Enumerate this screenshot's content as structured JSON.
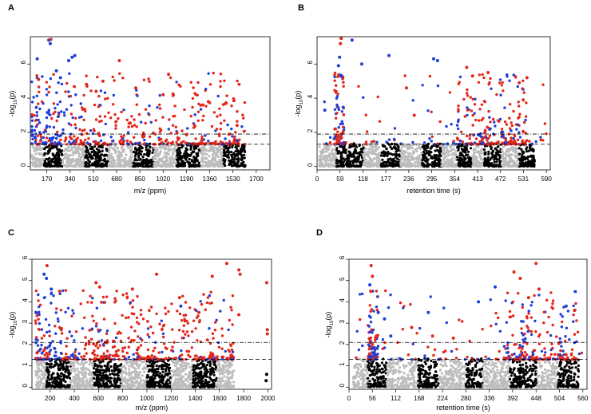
{
  "figure": {
    "colors": {
      "gray": "#bdbdbd",
      "black": "#000000",
      "blue": "#1f3fd6",
      "red": "#e3261a"
    }
  },
  "chart_data": [
    {
      "type": "scatter",
      "subtype": "manhattan",
      "panel_label": "A",
      "xlabel": "m/z (ppm)",
      "ylabel": "-log10(p)",
      "ylabel_main": "-log",
      "ylabel_sub": "10",
      "ylabel_tail": "(p)",
      "xlim": [
        50,
        1800
      ],
      "ylim": [
        -0.2,
        7.6
      ],
      "xticks": [
        170,
        340,
        510,
        680,
        850,
        1020,
        1190,
        1360,
        1530,
        1700
      ],
      "yticks": [
        0,
        2,
        4,
        6
      ],
      "thresholds": {
        "dashed": 1.3,
        "dotdash": 1.9
      },
      "bands": [
        {
          "from": 60,
          "to": 150,
          "color": "gray"
        },
        {
          "from": 150,
          "to": 285,
          "color": "black"
        },
        {
          "from": 285,
          "to": 450,
          "color": "gray"
        },
        {
          "from": 450,
          "to": 620,
          "color": "black"
        },
        {
          "from": 620,
          "to": 800,
          "color": "gray"
        },
        {
          "from": 800,
          "to": 950,
          "color": "black"
        },
        {
          "from": 950,
          "to": 1120,
          "color": "gray"
        },
        {
          "from": 1120,
          "to": 1290,
          "color": "black"
        },
        {
          "from": 1290,
          "to": 1460,
          "color": "gray"
        },
        {
          "from": 1460,
          "to": 1620,
          "color": "black"
        }
      ],
      "highlights": [
        {
          "x": 185,
          "y": 7.4,
          "color": "blue"
        },
        {
          "x": 200,
          "y": 7.45,
          "color": "red"
        },
        {
          "x": 195,
          "y": 7.2,
          "color": "blue"
        },
        {
          "x": 100,
          "y": 6.3,
          "color": "blue"
        },
        {
          "x": 330,
          "y": 6.2,
          "color": "blue"
        },
        {
          "x": 355,
          "y": 6.4,
          "color": "blue"
        },
        {
          "x": 375,
          "y": 6.5,
          "color": "blue"
        },
        {
          "x": 110,
          "y": 5.1,
          "color": "red"
        },
        {
          "x": 700,
          "y": 6.2,
          "color": "red"
        },
        {
          "x": 240,
          "y": 5.6,
          "color": "blue"
        },
        {
          "x": 270,
          "y": 5.2,
          "color": "blue"
        },
        {
          "x": 1060,
          "y": 5.4,
          "color": "red"
        },
        {
          "x": 1020,
          "y": 4.2,
          "color": "red"
        },
        {
          "x": 820,
          "y": 4.6,
          "color": "red"
        },
        {
          "x": 580,
          "y": 5.0,
          "color": "red"
        },
        {
          "x": 530,
          "y": 4.4,
          "color": "red"
        },
        {
          "x": 460,
          "y": 4.8,
          "color": "red"
        },
        {
          "x": 1310,
          "y": 3.6,
          "color": "red"
        },
        {
          "x": 1350,
          "y": 3.8,
          "color": "red"
        },
        {
          "x": 1480,
          "y": 3.7,
          "color": "red"
        },
        {
          "x": 1560,
          "y": 2.4,
          "color": "red"
        }
      ]
    },
    {
      "type": "scatter",
      "subtype": "manhattan",
      "panel_label": "B",
      "xlabel": "retention time (s)",
      "ylabel": "-log10(p)",
      "ylabel_main": "-log",
      "ylabel_sub": "10",
      "ylabel_tail": "(p)",
      "xlim": [
        0,
        600
      ],
      "ylim": [
        -0.2,
        7.6
      ],
      "xticks": [
        0,
        59,
        118,
        177,
        236,
        295,
        354,
        413,
        472,
        531,
        590
      ],
      "yticks": [
        0,
        2,
        4,
        6
      ],
      "thresholds": {
        "dashed": 1.3,
        "dotdash": 1.9
      },
      "bands": [
        {
          "from": 5,
          "to": 50,
          "color": "gray"
        },
        {
          "from": 50,
          "to": 65,
          "color": "black"
        },
        {
          "from": 65,
          "to": 120,
          "color": "black"
        },
        {
          "from": 120,
          "to": 165,
          "color": "gray"
        },
        {
          "from": 165,
          "to": 215,
          "color": "black"
        },
        {
          "from": 215,
          "to": 270,
          "color": "gray"
        },
        {
          "from": 270,
          "to": 320,
          "color": "black"
        },
        {
          "from": 320,
          "to": 360,
          "color": "gray"
        },
        {
          "from": 360,
          "to": 400,
          "color": "black"
        },
        {
          "from": 400,
          "to": 430,
          "color": "gray"
        },
        {
          "from": 430,
          "to": 475,
          "color": "black"
        },
        {
          "from": 475,
          "to": 520,
          "color": "gray"
        },
        {
          "from": 520,
          "to": 560,
          "color": "black"
        }
      ],
      "highlights": [
        {
          "x": 62,
          "y": 7.5,
          "color": "red"
        },
        {
          "x": 60,
          "y": 7.2,
          "color": "red"
        },
        {
          "x": 58,
          "y": 6.4,
          "color": "blue"
        },
        {
          "x": 55,
          "y": 5.9,
          "color": "blue"
        },
        {
          "x": 90,
          "y": 7.4,
          "color": "blue"
        },
        {
          "x": 115,
          "y": 6.0,
          "color": "blue"
        },
        {
          "x": 185,
          "y": 6.5,
          "color": "blue"
        },
        {
          "x": 300,
          "y": 6.3,
          "color": "blue"
        },
        {
          "x": 310,
          "y": 6.2,
          "color": "blue"
        },
        {
          "x": 385,
          "y": 5.8,
          "color": "red"
        },
        {
          "x": 400,
          "y": 5.3,
          "color": "red"
        },
        {
          "x": 440,
          "y": 5.5,
          "color": "red"
        },
        {
          "x": 540,
          "y": 5.2,
          "color": "red"
        },
        {
          "x": 520,
          "y": 4.9,
          "color": "red"
        },
        {
          "x": 230,
          "y": 4.6,
          "color": "red"
        },
        {
          "x": 250,
          "y": 3.0,
          "color": "red"
        },
        {
          "x": 20,
          "y": 3.3,
          "color": "blue"
        }
      ]
    },
    {
      "type": "scatter",
      "subtype": "manhattan",
      "panel_label": "C",
      "xlabel": "m/z (ppm)",
      "ylabel": "-log10(p)",
      "ylabel_main": "-log",
      "ylabel_sub": "10",
      "ylabel_tail": "(p)",
      "xlim": [
        50,
        2030
      ],
      "ylim": [
        -0.1,
        6.0
      ],
      "xticks": [
        200,
        400,
        600,
        800,
        1000,
        1200,
        1400,
        1600,
        1800,
        2000
      ],
      "yticks": [
        0,
        1,
        2,
        3,
        4,
        5,
        6
      ],
      "thresholds": {
        "dashed": 1.3,
        "dotdash": 2.1
      },
      "bands": [
        {
          "from": 80,
          "to": 170,
          "color": "gray"
        },
        {
          "from": 170,
          "to": 370,
          "color": "black"
        },
        {
          "from": 370,
          "to": 560,
          "color": "gray"
        },
        {
          "from": 560,
          "to": 790,
          "color": "black"
        },
        {
          "from": 790,
          "to": 1000,
          "color": "gray"
        },
        {
          "from": 1000,
          "to": 1200,
          "color": "black"
        },
        {
          "from": 1200,
          "to": 1380,
          "color": "gray"
        },
        {
          "from": 1380,
          "to": 1580,
          "color": "black"
        },
        {
          "from": 1580,
          "to": 1720,
          "color": "gray"
        }
      ],
      "highlights": [
        {
          "x": 150,
          "y": 5.3,
          "color": "blue"
        },
        {
          "x": 175,
          "y": 5.7,
          "color": "red"
        },
        {
          "x": 170,
          "y": 5.1,
          "color": "blue"
        },
        {
          "x": 210,
          "y": 4.6,
          "color": "blue"
        },
        {
          "x": 280,
          "y": 4.5,
          "color": "red"
        },
        {
          "x": 580,
          "y": 4.9,
          "color": "red"
        },
        {
          "x": 610,
          "y": 4.7,
          "color": "red"
        },
        {
          "x": 880,
          "y": 4.6,
          "color": "red"
        },
        {
          "x": 1080,
          "y": 5.3,
          "color": "red"
        },
        {
          "x": 1540,
          "y": 5.2,
          "color": "red"
        },
        {
          "x": 1660,
          "y": 5.8,
          "color": "red"
        },
        {
          "x": 1760,
          "y": 5.5,
          "color": "red"
        },
        {
          "x": 1770,
          "y": 5.3,
          "color": "red"
        },
        {
          "x": 1760,
          "y": 3.4,
          "color": "red"
        },
        {
          "x": 1990,
          "y": 4.9,
          "color": "red"
        },
        {
          "x": 1995,
          "y": 2.7,
          "color": "red"
        },
        {
          "x": 1995,
          "y": 2.5,
          "color": "red"
        },
        {
          "x": 1270,
          "y": 4.2,
          "color": "red"
        },
        {
          "x": 1280,
          "y": 3.8,
          "color": "blue"
        },
        {
          "x": 1430,
          "y": 3.5,
          "color": "red"
        },
        {
          "x": 1990,
          "y": 0.6,
          "color": "black"
        },
        {
          "x": 1985,
          "y": 0.3,
          "color": "black"
        }
      ]
    },
    {
      "type": "scatter",
      "subtype": "manhattan",
      "panel_label": "D",
      "xlabel": "retention time (s)",
      "ylabel": "-log10(p)",
      "ylabel_main": "-log",
      "ylabel_sub": "10",
      "ylabel_tail": "(p)",
      "xlim": [
        0,
        570
      ],
      "ylim": [
        -0.1,
        6.0
      ],
      "xticks": [
        0,
        56,
        112,
        168,
        224,
        280,
        336,
        392,
        448,
        504,
        560
      ],
      "yticks": [
        0,
        1,
        2,
        3,
        4,
        5,
        6
      ],
      "thresholds": {
        "dashed": 1.3,
        "dotdash": 2.1
      },
      "bands": [
        {
          "from": 10,
          "to": 45,
          "color": "gray"
        },
        {
          "from": 45,
          "to": 60,
          "color": "black"
        },
        {
          "from": 60,
          "to": 90,
          "color": "black"
        },
        {
          "from": 90,
          "to": 165,
          "color": "gray"
        },
        {
          "from": 165,
          "to": 215,
          "color": "black"
        },
        {
          "from": 215,
          "to": 280,
          "color": "gray"
        },
        {
          "from": 280,
          "to": 320,
          "color": "black"
        },
        {
          "from": 320,
          "to": 385,
          "color": "gray"
        },
        {
          "from": 385,
          "to": 450,
          "color": "black"
        },
        {
          "from": 450,
          "to": 500,
          "color": "gray"
        },
        {
          "from": 500,
          "to": 550,
          "color": "black"
        }
      ],
      "highlights": [
        {
          "x": 53,
          "y": 5.7,
          "color": "red"
        },
        {
          "x": 50,
          "y": 4.8,
          "color": "blue"
        },
        {
          "x": 56,
          "y": 5.2,
          "color": "red"
        },
        {
          "x": 52,
          "y": 4.5,
          "color": "red"
        },
        {
          "x": 70,
          "y": 3.5,
          "color": "blue"
        },
        {
          "x": 85,
          "y": 3.2,
          "color": "blue"
        },
        {
          "x": 100,
          "y": 2.4,
          "color": "blue"
        },
        {
          "x": 190,
          "y": 3.5,
          "color": "blue"
        },
        {
          "x": 200,
          "y": 2.4,
          "color": "red"
        },
        {
          "x": 310,
          "y": 4.0,
          "color": "blue"
        },
        {
          "x": 350,
          "y": 4.7,
          "color": "blue"
        },
        {
          "x": 395,
          "y": 5.4,
          "color": "red"
        },
        {
          "x": 410,
          "y": 5.1,
          "color": "red"
        },
        {
          "x": 448,
          "y": 5.8,
          "color": "red"
        },
        {
          "x": 455,
          "y": 4.6,
          "color": "red"
        },
        {
          "x": 430,
          "y": 4.2,
          "color": "red"
        },
        {
          "x": 520,
          "y": 3.8,
          "color": "blue"
        },
        {
          "x": 540,
          "y": 3.6,
          "color": "red"
        },
        {
          "x": 150,
          "y": 2.8,
          "color": "red"
        },
        {
          "x": 250,
          "y": 2.3,
          "color": "red"
        }
      ]
    }
  ]
}
